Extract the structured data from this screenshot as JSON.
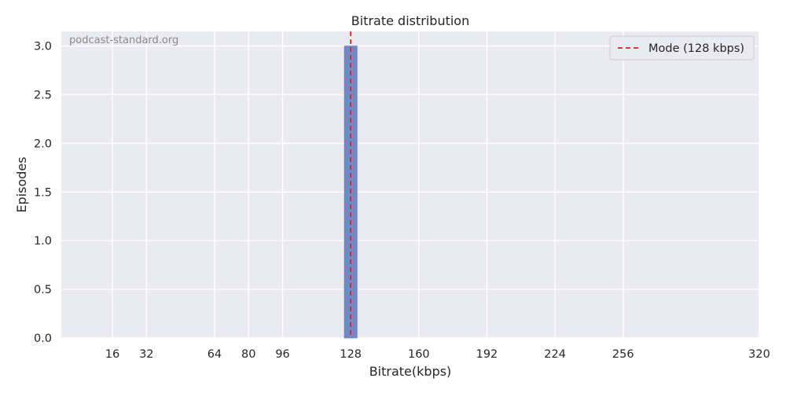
{
  "chart_data": {
    "type": "bar",
    "title": "Bitrate distribution",
    "xlabel": "Bitrate(kbps)",
    "ylabel": "Episodes",
    "watermark": "podcast-standard.org",
    "x_ticks": [
      16,
      32,
      64,
      80,
      96,
      128,
      160,
      192,
      224,
      256,
      320
    ],
    "y_ticks": [
      0.0,
      0.5,
      1.0,
      1.5,
      2.0,
      2.5,
      3.0
    ],
    "y_tick_labels": [
      "0.0",
      "0.5",
      "1.0",
      "1.5",
      "2.0",
      "2.5",
      "3.0"
    ],
    "xlim": [
      -8,
      320
    ],
    "ylim": [
      0,
      3.15
    ],
    "bins": [
      {
        "x_start": 125,
        "x_end": 131,
        "value": 3
      }
    ],
    "mode_line": {
      "x": 128,
      "label": "Mode (128 kbps)",
      "color": "#e41a1c"
    },
    "bar_color": "#6f8ac4",
    "background_color": "#eaeaf2",
    "grid": true,
    "legend_position": "top-right"
  }
}
